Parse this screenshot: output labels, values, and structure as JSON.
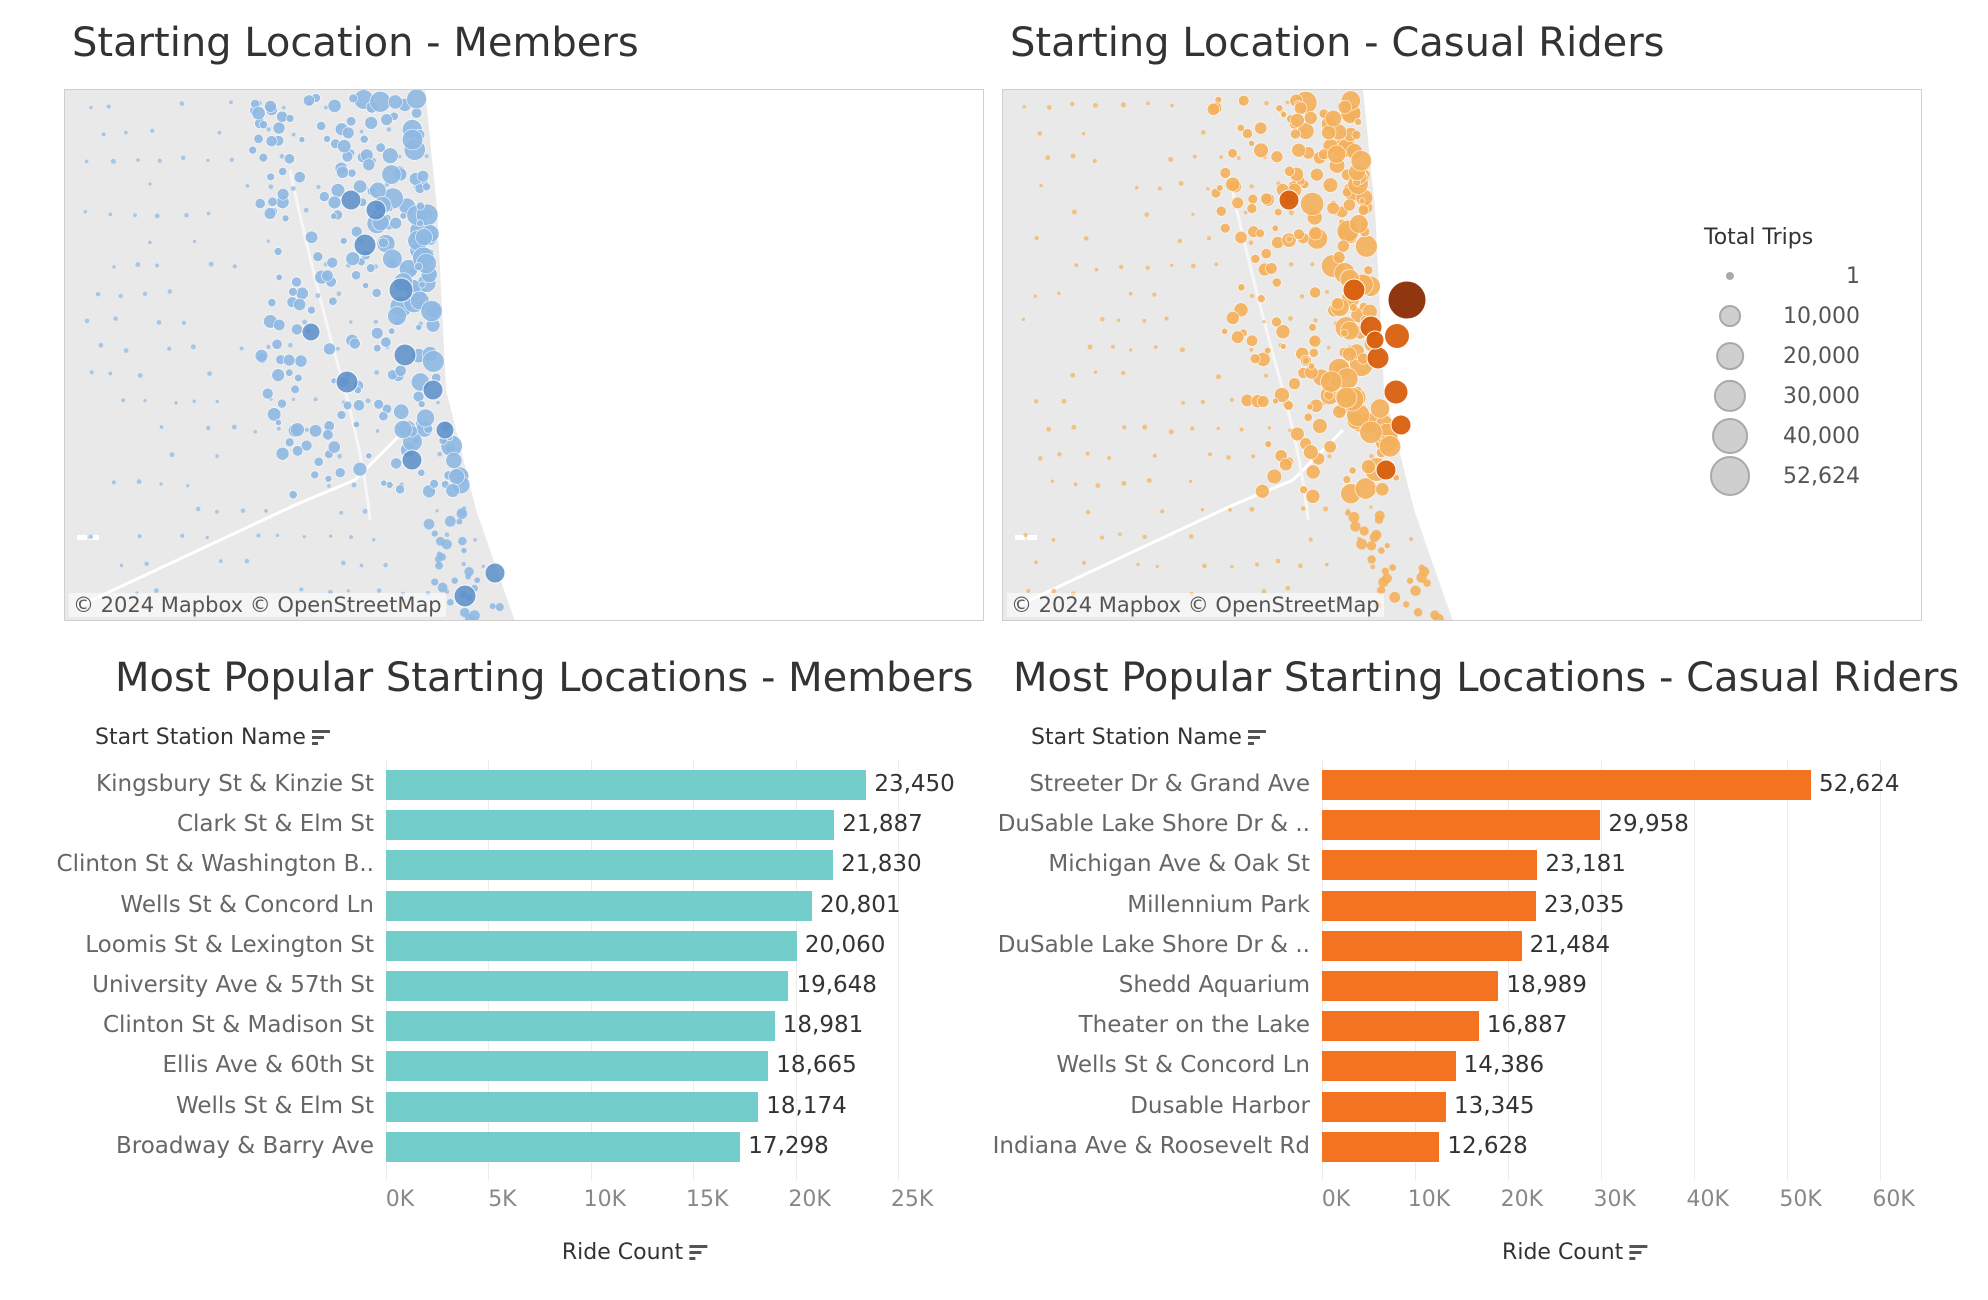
{
  "maps": {
    "members": {
      "title": "Starting Location - Members",
      "attribution": "© 2024 Mapbox  © OpenStreetMap",
      "color": "#8fb9e3",
      "dark_color": "#5c8fc9"
    },
    "casual": {
      "title": "Starting Location - Casual Riders",
      "attribution": "© 2024 Mapbox  © OpenStreetMap",
      "color": "#f5b15c",
      "dark_color": "#d95f0e",
      "darkest_color": "#8c2d04"
    },
    "legend": {
      "title": "Total Trips",
      "entries": [
        {
          "label": "1",
          "value": 1
        },
        {
          "label": "10,000",
          "value": 10000
        },
        {
          "label": "20,000",
          "value": 20000
        },
        {
          "label": "30,000",
          "value": 30000
        },
        {
          "label": "40,000",
          "value": 40000
        },
        {
          "label": "52,624",
          "value": 52624
        }
      ]
    }
  },
  "chart_data": [
    {
      "type": "bar",
      "orientation": "horizontal",
      "title": "Most Popular Starting Locations - Members",
      "ylabel": "Start Station Name",
      "xlabel": "Ride Count",
      "categories": [
        "Kingsbury St & Kinzie St",
        "Clark St & Elm St",
        "Clinton St & Washington B..",
        "Wells St & Concord Ln",
        "Loomis St & Lexington St",
        "University Ave & 57th St",
        "Clinton St & Madison St",
        "Ellis Ave & 60th St",
        "Wells St & Elm St",
        "Broadway & Barry Ave"
      ],
      "values": [
        23450,
        21887,
        21830,
        20801,
        20060,
        19648,
        18981,
        18665,
        18174,
        17298
      ],
      "value_labels": [
        "23,450",
        "21,887",
        "21,830",
        "20,801",
        "20,060",
        "19,648",
        "18,981",
        "18,665",
        "18,174",
        "17,298"
      ],
      "xticks": [
        "0K",
        "5K",
        "10K",
        "15K",
        "20K",
        "25K"
      ],
      "xtick_values": [
        0,
        5000,
        10000,
        15000,
        20000,
        25000
      ],
      "xlim": [
        0,
        29000
      ],
      "color": "#72cdcb"
    },
    {
      "type": "bar",
      "orientation": "horizontal",
      "title": "Most Popular Starting Locations - Casual Riders",
      "ylabel": "Start Station Name",
      "xlabel": "Ride Count",
      "categories": [
        "Streeter Dr & Grand Ave",
        "DuSable Lake Shore Dr & ..",
        "Michigan Ave & Oak St",
        "Millennium Park",
        "DuSable Lake Shore Dr & ..",
        "Shedd Aquarium",
        "Theater on the Lake",
        "Wells St & Concord Ln",
        "Dusable Harbor",
        "Indiana Ave & Roosevelt Rd"
      ],
      "values": [
        52624,
        29958,
        23181,
        23035,
        21484,
        18989,
        16887,
        14386,
        13345,
        12628
      ],
      "value_labels": [
        "52,624",
        "29,958",
        "23,181",
        "23,035",
        "21,484",
        "18,989",
        "16,887",
        "14,386",
        "13,345",
        "12,628"
      ],
      "xticks": [
        "0K",
        "10K",
        "20K",
        "30K",
        "40K",
        "50K",
        "60K"
      ],
      "xtick_values": [
        0,
        10000,
        20000,
        30000,
        40000,
        50000,
        60000
      ],
      "xlim": [
        0,
        65000
      ],
      "color": "#f47321"
    }
  ]
}
